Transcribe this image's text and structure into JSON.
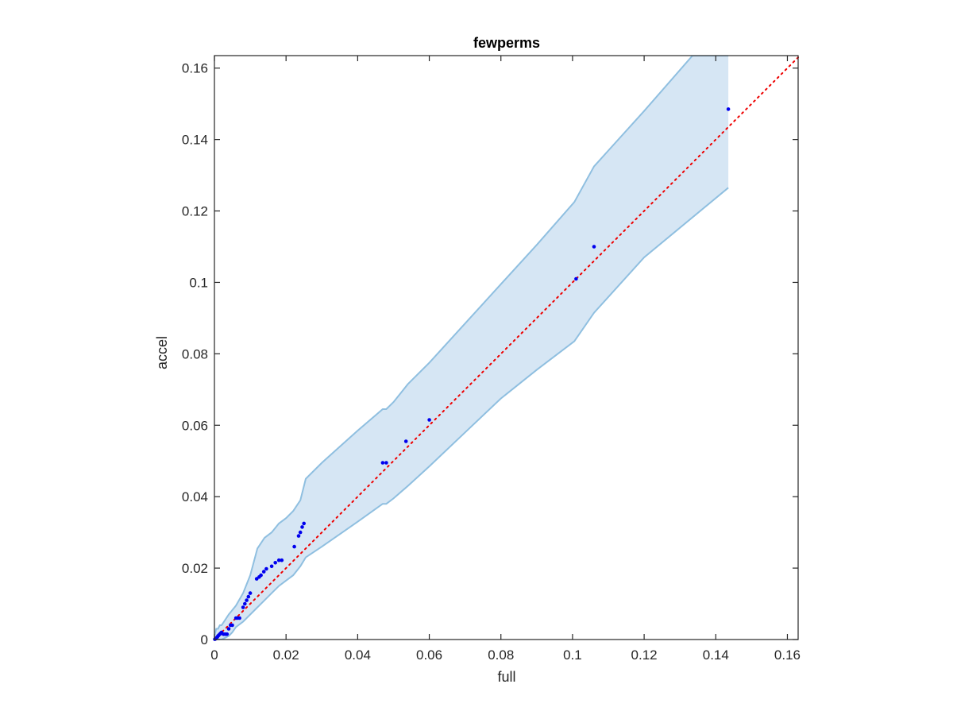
{
  "chart_data": {
    "type": "scatter",
    "title": "fewperms",
    "xlabel": "full",
    "ylabel": "accel",
    "xlim": [
      0,
      0.163
    ],
    "ylim": [
      0,
      0.1635
    ],
    "xticks": [
      0,
      0.02,
      0.04,
      0.06,
      0.08,
      0.1,
      0.12,
      0.14,
      0.16
    ],
    "xtick_labels": [
      "0",
      "0.02",
      "0.04",
      "0.06",
      "0.08",
      "0.1",
      "0.12",
      "0.14",
      "0.16"
    ],
    "yticks": [
      0,
      0.02,
      0.04,
      0.06,
      0.08,
      0.1,
      0.12,
      0.14,
      0.16
    ],
    "ytick_labels": [
      "0",
      "0.02",
      "0.04",
      "0.06",
      "0.08",
      "0.1",
      "0.12",
      "0.14",
      "0.16"
    ],
    "grid": false,
    "colors": {
      "points": "#0000ee",
      "reference_line": "#ee0000",
      "band_fill": "#d6e6f4",
      "band_edge": "#8fbfe0",
      "axes": "#262626"
    },
    "points": [
      [
        0.0001,
        0.0001
      ],
      [
        0.0003,
        0.0002
      ],
      [
        0.0005,
        0.0004
      ],
      [
        0.0008,
        0.0007
      ],
      [
        0.001,
        0.001
      ],
      [
        0.0012,
        0.0012
      ],
      [
        0.0015,
        0.0015
      ],
      [
        0.0018,
        0.0018
      ],
      [
        0.002,
        0.002
      ],
      [
        0.0025,
        0.0015
      ],
      [
        0.003,
        0.0015
      ],
      [
        0.0035,
        0.0015
      ],
      [
        0.004,
        0.003
      ],
      [
        0.0045,
        0.004
      ],
      [
        0.005,
        0.004
      ],
      [
        0.006,
        0.006
      ],
      [
        0.0065,
        0.006
      ],
      [
        0.007,
        0.006
      ],
      [
        0.008,
        0.009
      ],
      [
        0.0085,
        0.01
      ],
      [
        0.009,
        0.011
      ],
      [
        0.0095,
        0.012
      ],
      [
        0.01,
        0.013
      ],
      [
        0.0118,
        0.017
      ],
      [
        0.0125,
        0.0175
      ],
      [
        0.013,
        0.018
      ],
      [
        0.0138,
        0.019
      ],
      [
        0.0145,
        0.0198
      ],
      [
        0.016,
        0.0205
      ],
      [
        0.017,
        0.0215
      ],
      [
        0.018,
        0.0222
      ],
      [
        0.0188,
        0.0222
      ],
      [
        0.0223,
        0.026
      ],
      [
        0.0235,
        0.029
      ],
      [
        0.024,
        0.03
      ],
      [
        0.0245,
        0.0315
      ],
      [
        0.025,
        0.0325
      ],
      [
        0.047,
        0.0495
      ],
      [
        0.048,
        0.0495
      ],
      [
        0.0535,
        0.0555
      ],
      [
        0.06,
        0.0615
      ],
      [
        0.101,
        0.101
      ],
      [
        0.106,
        0.11
      ],
      [
        0.1435,
        0.1485
      ]
    ],
    "reference_line": [
      [
        0,
        0
      ],
      [
        0.163,
        0.163
      ]
    ],
    "band_upper": [
      [
        0,
        0.001
      ],
      [
        0.0005,
        0.003
      ],
      [
        0.001,
        0.003
      ],
      [
        0.0015,
        0.004
      ],
      [
        0.002,
        0.004
      ],
      [
        0.003,
        0.0055
      ],
      [
        0.004,
        0.007
      ],
      [
        0.006,
        0.0095
      ],
      [
        0.008,
        0.013
      ],
      [
        0.01,
        0.018
      ],
      [
        0.012,
        0.0255
      ],
      [
        0.014,
        0.0285
      ],
      [
        0.016,
        0.03
      ],
      [
        0.018,
        0.0325
      ],
      [
        0.02,
        0.034
      ],
      [
        0.022,
        0.036
      ],
      [
        0.024,
        0.039
      ],
      [
        0.0255,
        0.045
      ],
      [
        0.03,
        0.0495
      ],
      [
        0.035,
        0.054
      ],
      [
        0.04,
        0.0585
      ],
      [
        0.047,
        0.0645
      ],
      [
        0.048,
        0.0645
      ],
      [
        0.05,
        0.0665
      ],
      [
        0.054,
        0.0715
      ],
      [
        0.06,
        0.0775
      ],
      [
        0.07,
        0.0885
      ],
      [
        0.08,
        0.0995
      ],
      [
        0.09,
        0.1105
      ],
      [
        0.1005,
        0.1225
      ],
      [
        0.106,
        0.1325
      ],
      [
        0.12,
        0.148
      ],
      [
        0.1335,
        0.1635
      ],
      [
        0.1435,
        0.1635
      ]
    ],
    "band_lower": [
      [
        0.1435,
        0.1265
      ],
      [
        0.12,
        0.107
      ],
      [
        0.106,
        0.0915
      ],
      [
        0.1005,
        0.0835
      ],
      [
        0.09,
        0.0755
      ],
      [
        0.08,
        0.0675
      ],
      [
        0.07,
        0.058
      ],
      [
        0.06,
        0.0485
      ],
      [
        0.054,
        0.043
      ],
      [
        0.05,
        0.0395
      ],
      [
        0.048,
        0.038
      ],
      [
        0.047,
        0.038
      ],
      [
        0.04,
        0.033
      ],
      [
        0.035,
        0.0295
      ],
      [
        0.03,
        0.026
      ],
      [
        0.0255,
        0.023
      ],
      [
        0.024,
        0.0205
      ],
      [
        0.022,
        0.018
      ],
      [
        0.02,
        0.0165
      ],
      [
        0.018,
        0.015
      ],
      [
        0.016,
        0.013
      ],
      [
        0.014,
        0.011
      ],
      [
        0.012,
        0.009
      ],
      [
        0.01,
        0.007
      ],
      [
        0.008,
        0.005
      ],
      [
        0.006,
        0.0035
      ],
      [
        0.005,
        0.002
      ],
      [
        0.004,
        0.001
      ],
      [
        0.002,
        0.0
      ],
      [
        0.0,
        0.0
      ]
    ]
  }
}
